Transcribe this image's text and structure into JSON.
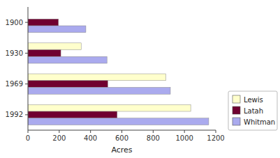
{
  "chart_data": {
    "type": "bar",
    "orientation": "horizontal",
    "categories": [
      "1900",
      "1930",
      "1969",
      "1992"
    ],
    "series": [
      {
        "name": "Lewis",
        "color": "#ffffcc",
        "values": [
          0,
          340,
          880,
          1040
        ]
      },
      {
        "name": "Latah",
        "color": "#700030",
        "values": [
          195,
          210,
          510,
          570
        ]
      },
      {
        "name": "Whitman",
        "color": "#aaaaee",
        "values": [
          370,
          505,
          910,
          1155
        ]
      }
    ],
    "xlabel": "Acres",
    "xlim": [
      0,
      1200
    ],
    "xticks": [
      0,
      200,
      400,
      600,
      800,
      1000,
      1200
    ],
    "legend": "lower right"
  }
}
